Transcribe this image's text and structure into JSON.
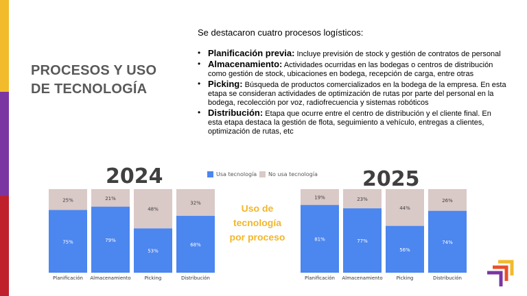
{
  "colors": {
    "uses": "#4C86EF",
    "not_uses": "#D9C9C7",
    "accent": "#F2B62B",
    "stripe_yellow": "#F2BB2C",
    "stripe_purple": "#7B35A3",
    "stripe_red": "#C0202B"
  },
  "title": {
    "line1": "PROCESOS Y USO",
    "line2": "DE TECNOLOGÍA"
  },
  "intro": "Se destacaron cuatro procesos logísticos:",
  "bullets": [
    {
      "term": "Planificación previa:",
      "text": " Incluye previsión de stock y gestión de contratos de personal"
    },
    {
      "term": "Almacenamiento:",
      "text": " Actividades ocurridas en las bodegas o centros de distribución como gestión de stock, ubicaciones en bodega, recepción de carga, entre otras"
    },
    {
      "term": "Picking:",
      "text": " Búsqueda de productos comercializados en la bodega de la empresa. En esta etapa se consideran actividades de optimización de rutas por parte del personal en la bodega, recolección por voz, radiofrecuencia y sistemas robóticos"
    },
    {
      "term": "Distribución:",
      "text": " Etapa que ocurre entre el centro de distribución y el cliente final. En esta etapa destaca la gestión de flota, seguimiento a vehículo, entregas a clientes, optimización de rutas, etc"
    }
  ],
  "legend": {
    "uses": "Usa tecnología",
    "not_uses": "No usa tecnología"
  },
  "center_label": {
    "line1": "Uso de",
    "line2": "tecnología",
    "line3": "por proceso"
  },
  "chart_data": [
    {
      "type": "bar",
      "stacked": true,
      "title": "2024",
      "categories": [
        "Planificación",
        "Almacenamiento",
        "Picking",
        "Distribución"
      ],
      "series": [
        {
          "name": "Usa tecnología",
          "values": [
            75,
            79,
            53,
            68
          ],
          "labels": [
            "75%",
            "79%",
            "53%",
            "68%"
          ]
        },
        {
          "name": "No usa tecnología",
          "values": [
            25,
            21,
            48,
            32
          ],
          "labels": [
            "25%",
            "21%",
            "48%",
            "32%"
          ]
        }
      ],
      "ylim": [
        0,
        100
      ],
      "grid": false,
      "legend": "top"
    },
    {
      "type": "bar",
      "stacked": true,
      "title": "2025",
      "categories": [
        "Planificación",
        "Almacenamiento",
        "Picking",
        "Distribución"
      ],
      "series": [
        {
          "name": "Usa tecnología",
          "values": [
            81,
            77,
            56,
            74
          ],
          "labels": [
            "81%",
            "77%",
            "56%",
            "74%"
          ]
        },
        {
          "name": "No usa tecnología",
          "values": [
            19,
            23,
            44,
            26
          ],
          "labels": [
            "19%",
            "23%",
            "44%",
            "26%"
          ]
        }
      ],
      "ylim": [
        0,
        100
      ],
      "grid": false,
      "legend": "top"
    }
  ]
}
